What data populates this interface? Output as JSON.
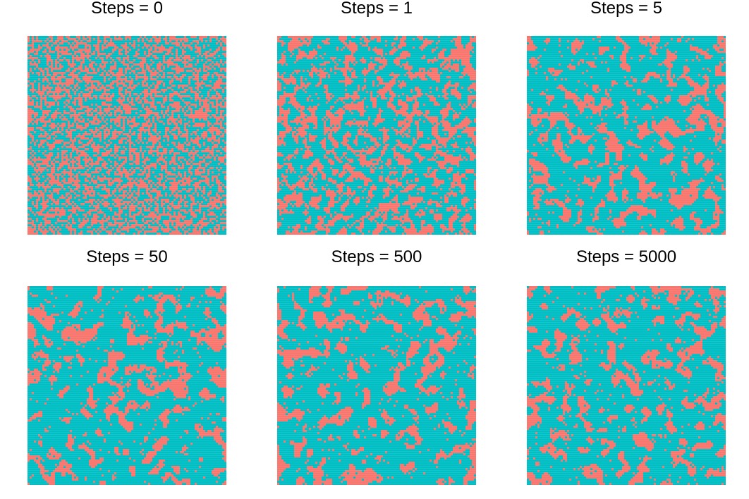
{
  "colors": {
    "state_a": "#F8766D",
    "state_b": "#00BFC4",
    "background": "#FFFFFF"
  },
  "chart_data": [
    {
      "type": "heatmap",
      "title": "Steps = 0",
      "grid": false,
      "legend": "none"
    },
    {
      "type": "heatmap",
      "title": "Steps = 1",
      "grid": false,
      "legend": "none"
    },
    {
      "type": "heatmap",
      "title": "Steps = 5",
      "grid": false,
      "legend": "none"
    },
    {
      "type": "heatmap",
      "title": "Steps = 50",
      "grid": false,
      "legend": "none"
    },
    {
      "type": "heatmap",
      "title": "Steps = 500",
      "grid": false,
      "legend": "none"
    },
    {
      "type": "heatmap",
      "title": "Steps = 5000",
      "grid": false,
      "legend": "none"
    }
  ]
}
